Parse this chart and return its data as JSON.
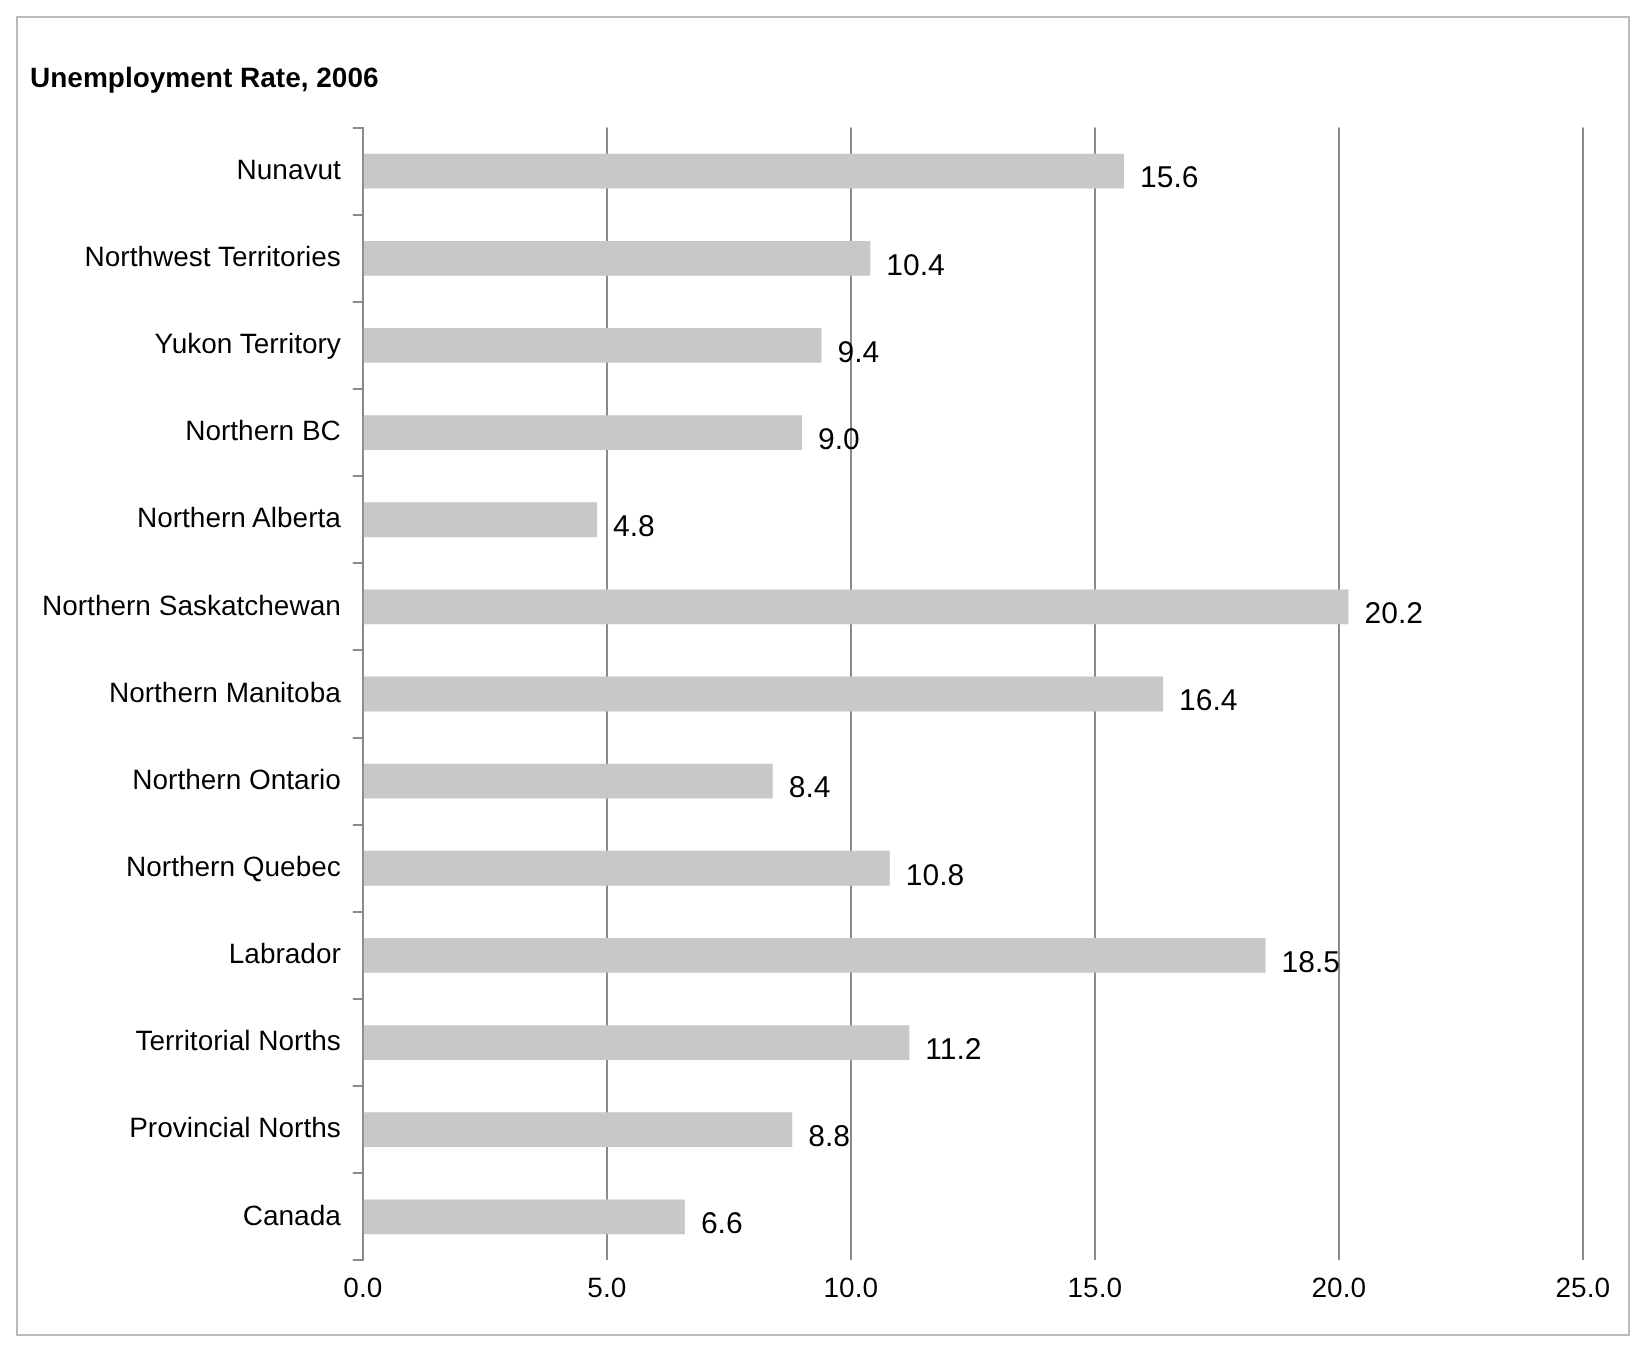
{
  "chart_data": {
    "type": "bar",
    "orientation": "horizontal",
    "title": "Unemployment Rate, 2006",
    "categories": [
      "Nunavut",
      "Northwest Territories",
      "Yukon Territory",
      "Northern BC",
      "Northern Alberta",
      "Northern Saskatchewan",
      "Northern Manitoba",
      "Northern Ontario",
      "Northern Quebec",
      "Labrador",
      "Territorial Norths",
      "Provincial Norths",
      "Canada"
    ],
    "values": [
      15.6,
      10.4,
      9.4,
      9.0,
      4.8,
      20.2,
      16.4,
      8.4,
      10.8,
      18.5,
      11.2,
      8.8,
      6.6
    ],
    "value_labels": [
      "15.6",
      "10.4",
      "9.4",
      "9.0",
      "4.8",
      "20.2",
      "16.4",
      "8.4",
      "10.8",
      "18.5",
      "11.2",
      "8.8",
      "6.6"
    ],
    "color": "#c8c8c8",
    "xlim": [
      0,
      25
    ],
    "xticks": [
      {
        "value": 0,
        "label": "0.0"
      },
      {
        "value": 5,
        "label": "5.0"
      },
      {
        "value": 10,
        "label": "10.0"
      },
      {
        "value": 15,
        "label": "15.0"
      },
      {
        "value": 20,
        "label": "20.0"
      },
      {
        "value": 25,
        "label": "25.0"
      }
    ],
    "grid": "x",
    "legend": false
  }
}
